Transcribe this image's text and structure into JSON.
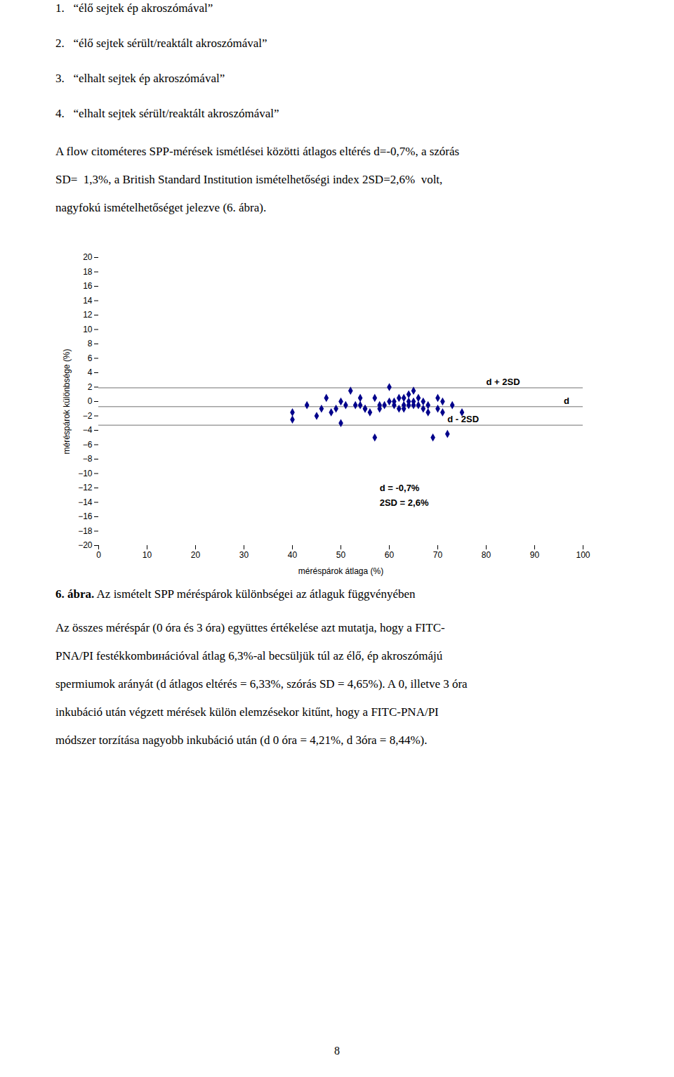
{
  "list_items": [
    "1.   “élő sejtek ép akroszómával”",
    "2.   “élő sejtek sérült/reaktált akroszómával”",
    "3.   “elhalt sejtek ép akroszómával”",
    "4.   “elhalt sejtek sérült/reaktált akroszómával”"
  ],
  "paragraph_above": [
    "A flow citométeres SPP-mérések ismétlései közötti átlagos eltérés d=-0,7%, a szórás",
    "SD=  1,3%, a British Standard Institution ismételhetőségi index 2SD=2,6%  volt,",
    "nagyfokú ismételhetőséget jelezve (6. ábra)."
  ],
  "chart_data": {
    "type": "scatter",
    "title": "6. ábra.",
    "subtitle": " Az ismételt SPP méréspárok különbségei az átlaguk függvényében",
    "x": [
      40,
      40,
      43,
      45,
      46,
      47,
      48,
      49,
      50,
      50,
      51,
      52,
      53,
      54,
      54,
      55,
      55,
      56,
      57,
      57,
      58,
      58,
      59,
      60,
      60,
      61,
      61,
      62,
      62,
      63,
      63,
      63,
      64,
      64,
      64,
      65,
      65,
      65,
      66,
      66,
      67,
      67,
      68,
      68,
      69,
      70,
      70,
      71,
      71,
      72,
      73,
      75
    ],
    "values": [
      -2.5,
      -1.5,
      -0.5,
      -2.0,
      -1.0,
      0.5,
      -1.5,
      -1.0,
      -3.0,
      0.0,
      -0.5,
      1.5,
      -0.5,
      -0.5,
      0.5,
      -1.0,
      -1.0,
      -1.5,
      -5.0,
      0.5,
      -1.0,
      -0.5,
      -0.5,
      2.0,
      0.0,
      -0.5,
      0.0,
      -1.0,
      0.5,
      -0.5,
      -1.0,
      0.5,
      -0.5,
      0.0,
      1.0,
      -0.5,
      0.0,
      1.5,
      -0.5,
      0.5,
      -1.0,
      0.0,
      -1.5,
      -0.5,
      -5.0,
      -1.0,
      0.5,
      -1.5,
      0.0,
      -4.5,
      -0.5,
      -1.5
    ],
    "color": "#00008B",
    "marker": "diamond",
    "xlabel": "méréspárok átlaga (%)",
    "ylabel": "méréspárok különbsége (%)",
    "xlim": [
      0,
      100
    ],
    "ylim": [
      -20,
      20
    ],
    "xticks": [
      0,
      10,
      20,
      30,
      40,
      50,
      60,
      70,
      80,
      90,
      100
    ],
    "yticks": [
      -20,
      -18,
      -16,
      -14,
      -12,
      -10,
      -8,
      -6,
      -4,
      -2,
      0,
      2,
      4,
      6,
      8,
      10,
      12,
      14,
      16,
      18,
      20
    ],
    "grid": false,
    "reference_lines": [
      {
        "y": -0.7,
        "color": "#A0A0A0"
      },
      {
        "y": 1.9,
        "color": "#A0A0A0"
      },
      {
        "y": -3.3,
        "color": "#A0A0A0"
      }
    ],
    "annotations": [
      {
        "text": "d + 2SD",
        "x": 80,
        "y": 1.9
      },
      {
        "text": "d",
        "x": 96,
        "y": -0.7
      },
      {
        "text": "d - 2SD",
        "x": 72,
        "y": -3.3
      },
      {
        "text": "d = -0,7%\n2SD = 2,6%",
        "x": 58,
        "y": -11
      }
    ]
  },
  "paragraph_below": [
    "Az összes méréspár (0 óra és 3 óra) együttes értékelése azt mutatja, hogy a FITC-",
    "PNA/PI festékkombинációval átlag 6,3%-al becsüljük túl az élő, ép akroszómájú",
    "spermiumok arányát (d átlagos eltérés = 6,33%, szórás SD = 4,65%). A 0, illetve 3 óra",
    "inkubáció után végzett mérések külön elemzésekor kitűnt, hogy a FITC-PNA/PI",
    "módszer torzítása nagyobb inkubáció után (d 0 óra = 4,21%, d 3óra = 8,44%)."
  ],
  "page_number": "8"
}
